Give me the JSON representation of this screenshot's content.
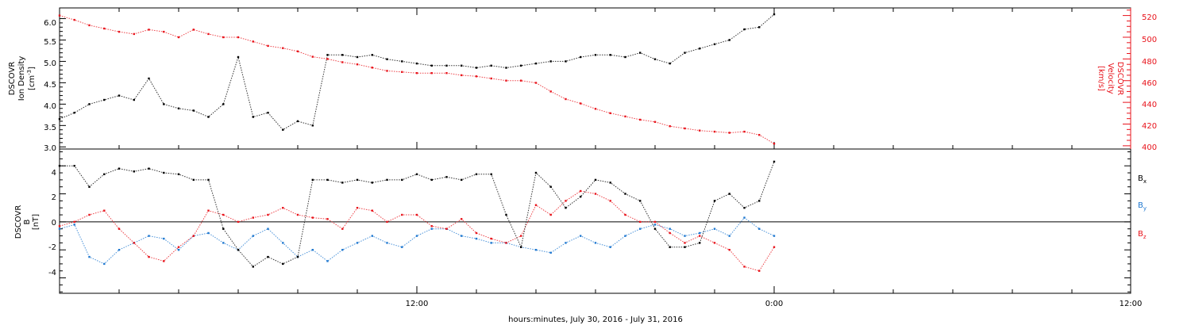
{
  "chart_data": {
    "type": "scatter",
    "xlabel": "hours:minutes, July 30, 2016 - July 31, 2016",
    "x_ticks": [
      "12:00",
      "0:00",
      "12:00"
    ],
    "colors": {
      "black": "#000000",
      "red": "#e8141c",
      "blue": "#1f78d0"
    },
    "panels": [
      {
        "name": "density-velocity",
        "ylabel": [
          "DSCOVR",
          "Ion Density",
          "[cm^-3]"
        ],
        "ylabel_right": [
          "DSCOVR",
          "Velocity",
          "[km/s]"
        ],
        "ylim": [
          2.95,
          6.25
        ],
        "y_ticks": [
          "3.0",
          "3.5",
          "4.0",
          "4.5",
          "5.0",
          "5.5",
          "6.0"
        ],
        "ylim_right": [
          397,
          527
        ],
        "y_ticks_right": [
          "400",
          "420",
          "440",
          "460",
          "480",
          "500",
          "520"
        ],
        "series": [
          {
            "color": "black",
            "x": [
              0,
              0.5,
              1,
              1.5,
              2,
              2.5,
              3,
              3.5,
              4,
              4.5,
              5,
              5.5,
              6,
              6.5,
              7,
              7.5,
              8,
              8.5,
              9,
              9.5,
              10,
              10.5,
              11,
              11.5,
              12,
              12.5,
              13,
              13.5,
              14,
              14.5,
              15,
              15.5,
              16,
              16.5,
              17,
              17.5,
              18,
              18.5,
              19,
              19.5,
              20,
              20.5,
              21,
              21.5,
              22,
              22.5,
              23,
              23.5,
              24
            ],
            "y": [
              3.65,
              3.8,
              4.0,
              4.1,
              4.2,
              4.1,
              4.6,
              4.0,
              3.9,
              3.85,
              3.7,
              4.0,
              5.1,
              3.7,
              3.8,
              3.4,
              3.6,
              3.5,
              5.15,
              5.15,
              5.1,
              5.15,
              5.05,
              5.0,
              4.95,
              4.9,
              4.9,
              4.9,
              4.85,
              4.9,
              4.85,
              4.9,
              4.95,
              5.0,
              5.0,
              5.1,
              5.15,
              5.15,
              5.1,
              5.2,
              5.05,
              4.95,
              5.2,
              5.3,
              5.4,
              5.5,
              5.75,
              5.8,
              6.1
            ]
          },
          {
            "color": "red",
            "axis": "right",
            "x": [
              0,
              0.5,
              1,
              1.5,
              2,
              2.5,
              3,
              3.5,
              4,
              4.5,
              5,
              5.5,
              6,
              6.5,
              7,
              7.5,
              8,
              8.5,
              9,
              9.5,
              10,
              10.5,
              11,
              11.5,
              12,
              12.5,
              13,
              13.5,
              14,
              14.5,
              15,
              15.5,
              16,
              16.5,
              17,
              17.5,
              18,
              18.5,
              19,
              19.5,
              20,
              20.5,
              21,
              21.5,
              22,
              22.5,
              23,
              23.5,
              24
            ],
            "y": [
              520,
              516,
              511,
              508,
              505,
              503,
              507,
              505,
              500,
              507,
              503,
              500,
              500,
              496,
              492,
              490,
              487,
              482,
              480,
              477,
              475,
              472,
              469,
              468,
              467,
              467,
              467,
              465,
              464,
              462,
              460,
              460,
              458,
              450,
              443,
              439,
              434,
              430,
              427,
              424,
              422,
              418,
              416,
              414,
              413,
              412,
              413,
              410,
              402
            ]
          }
        ]
      },
      {
        "name": "magnetic-field",
        "ylabel": [
          "DSCOVR",
          "B",
          "[nT]"
        ],
        "ylim": [
          -5.1,
          5.2
        ],
        "y_ticks": [
          "-4",
          "-2",
          "0",
          "2",
          "4"
        ],
        "legend": [
          {
            "label": "Bx",
            "color": "black"
          },
          {
            "label": "By",
            "color": "blue"
          },
          {
            "label": "Bz",
            "color": "red"
          }
        ],
        "series": [
          {
            "name": "Bx",
            "color": "black",
            "x": [
              0,
              0.5,
              1,
              1.5,
              2,
              2.5,
              3,
              3.5,
              4,
              4.5,
              5,
              5.5,
              6,
              6.5,
              7,
              7.5,
              8,
              8.5,
              9,
              9.5,
              10,
              10.5,
              11,
              11.5,
              12,
              12.5,
              13,
              13.5,
              14,
              14.5,
              15,
              15.5,
              16,
              16.5,
              17,
              17.5,
              18,
              18.5,
              19,
              19.5,
              20,
              20.5,
              21,
              21.5,
              22,
              22.5,
              23,
              23.5,
              24
            ],
            "y": [
              4.0,
              4.0,
              2.5,
              3.4,
              3.8,
              3.6,
              3.8,
              3.5,
              3.4,
              3.0,
              3.0,
              -0.5,
              -2.0,
              -3.2,
              -2.5,
              -3.0,
              -2.5,
              3.0,
              3.0,
              2.8,
              3.0,
              2.8,
              3.0,
              3.0,
              3.4,
              3.0,
              3.2,
              3.0,
              3.4,
              3.4,
              0.5,
              -1.8,
              3.5,
              2.5,
              1.0,
              1.8,
              3.0,
              2.8,
              2.0,
              1.5,
              -0.5,
              -1.8,
              -1.8,
              -1.5,
              1.5,
              2.0,
              1.0,
              1.5,
              4.3
            ]
          },
          {
            "name": "By",
            "color": "blue",
            "x": [
              0,
              0.5,
              1,
              1.5,
              2,
              2.5,
              3,
              3.5,
              4,
              4.5,
              5,
              5.5,
              6,
              6.5,
              7,
              7.5,
              8,
              8.5,
              9,
              9.5,
              10,
              10.5,
              11,
              11.5,
              12,
              12.5,
              13,
              13.5,
              14,
              14.5,
              15,
              15.5,
              16,
              16.5,
              17,
              17.5,
              18,
              18.5,
              19,
              19.5,
              20,
              20.5,
              21,
              21.5,
              22,
              22.5,
              23,
              23.5,
              24
            ],
            "y": [
              -0.5,
              -0.2,
              -2.5,
              -3.0,
              -2.0,
              -1.5,
              -1.0,
              -1.2,
              -2.0,
              -1.0,
              -0.8,
              -1.5,
              -2.0,
              -1.0,
              -0.5,
              -1.5,
              -2.5,
              -2.0,
              -2.8,
              -2.0,
              -1.5,
              -1.0,
              -1.5,
              -1.8,
              -1.0,
              -0.5,
              -0.5,
              -1.0,
              -1.2,
              -1.5,
              -1.5,
              -1.8,
              -2.0,
              -2.2,
              -1.5,
              -1.0,
              -1.5,
              -1.8,
              -1.0,
              -0.5,
              -0.2,
              -0.5,
              -1.0,
              -0.8,
              -0.5,
              -1.0,
              0.3,
              -0.5,
              -1.0
            ]
          },
          {
            "name": "Bz",
            "color": "red",
            "x": [
              0,
              0.5,
              1,
              1.5,
              2,
              2.5,
              3,
              3.5,
              4,
              4.5,
              5,
              5.5,
              6,
              6.5,
              7,
              7.5,
              8,
              8.5,
              9,
              9.5,
              10,
              10.5,
              11,
              11.5,
              12,
              12.5,
              13,
              13.5,
              14,
              14.5,
              15,
              15.5,
              16,
              16.5,
              17,
              17.5,
              18,
              18.5,
              19,
              19.5,
              20,
              20.5,
              21,
              21.5,
              22,
              22.5,
              23,
              23.5,
              24
            ],
            "y": [
              -0.3,
              0.0,
              0.5,
              0.8,
              -0.5,
              -1.5,
              -2.5,
              -2.8,
              -1.8,
              -1.0,
              0.8,
              0.5,
              0.0,
              0.3,
              0.5,
              1.0,
              0.5,
              0.3,
              0.2,
              -0.5,
              1.0,
              0.8,
              0.0,
              0.5,
              0.5,
              -0.3,
              -0.5,
              0.2,
              -0.8,
              -1.2,
              -1.5,
              -1.0,
              1.2,
              0.5,
              1.5,
              2.2,
              2.0,
              1.5,
              0.5,
              0.0,
              0.0,
              -0.8,
              -1.5,
              -1.0,
              -1.5,
              -2.0,
              -3.2,
              -3.5,
              -1.8
            ]
          }
        ]
      }
    ]
  }
}
